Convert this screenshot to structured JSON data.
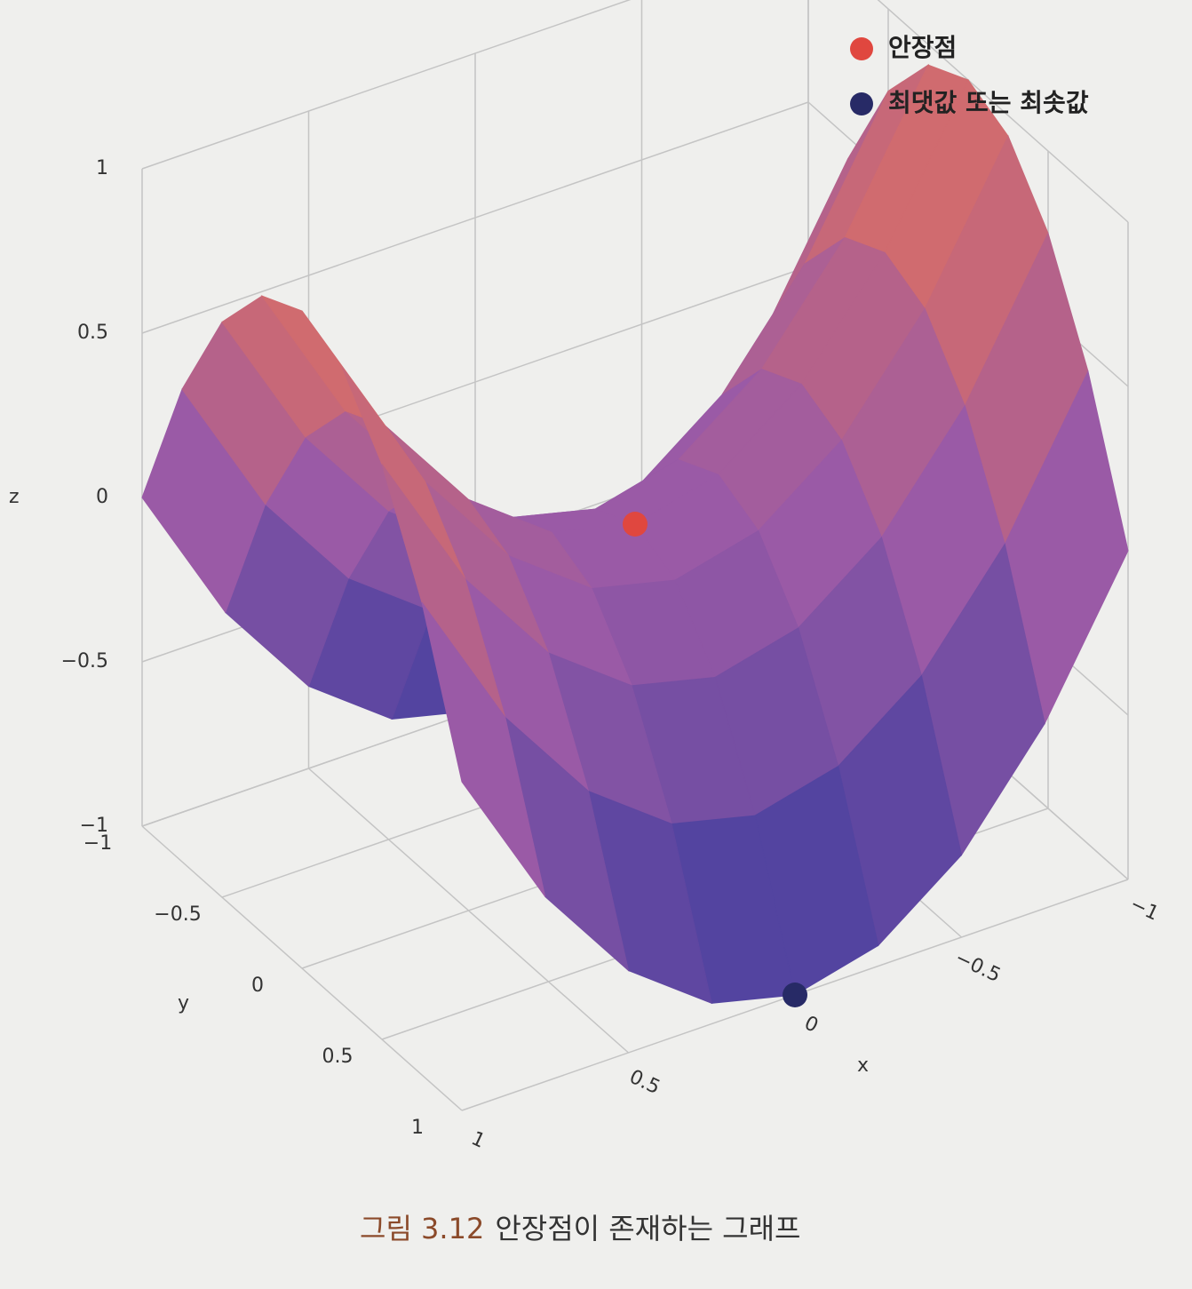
{
  "chart_data": {
    "type": "surface",
    "xlabel": "x",
    "ylabel": "y",
    "zlabel": "z",
    "xlim": [
      -1,
      1
    ],
    "ylim": [
      -1,
      1
    ],
    "zlim": [
      -1,
      1
    ],
    "xticks": [
      {
        "value": -1,
        "label": "−1"
      },
      {
        "value": -0.5,
        "label": "−0.5"
      },
      0,
      0.5,
      1
    ],
    "yticks": [
      {
        "value": -1,
        "label": "−1"
      },
      {
        "value": -0.5,
        "label": "−0.5"
      },
      0,
      0.5,
      1
    ],
    "zticks": [
      {
        "value": -1,
        "label": "−1"
      },
      {
        "value": -0.5,
        "label": "−0.5"
      },
      0,
      0.5,
      1
    ],
    "grid": true,
    "colorscale": [
      "#3b3c9e",
      "#9a5aa6",
      "#e2705c"
    ],
    "surface": {
      "x": [
        -1,
        -0.75,
        -0.5,
        -0.25,
        0,
        0.25,
        0.5,
        0.75,
        1
      ],
      "y": [
        -1,
        -0.75,
        -0.5,
        -0.25,
        0,
        0.25,
        0.5,
        0.75,
        1
      ],
      "z": [
        [
          0,
          -0.4375,
          -0.75,
          -0.9375,
          -1,
          -0.9375,
          -0.75,
          -0.4375,
          0
        ],
        [
          0.4375,
          0,
          -0.3125,
          -0.5,
          -0.5625,
          -0.5,
          -0.3125,
          0,
          0.4375
        ],
        [
          0.75,
          0.3125,
          0,
          -0.1875,
          -0.25,
          -0.1875,
          0,
          0.3125,
          0.75
        ],
        [
          0.9375,
          0.5,
          0.1875,
          0,
          -0.0625,
          0,
          0.1875,
          0.5,
          0.9375
        ],
        [
          1,
          0.5625,
          0.25,
          0.0625,
          0,
          0.0625,
          0.25,
          0.5625,
          1
        ],
        [
          0.9375,
          0.5,
          0.1875,
          0,
          -0.0625,
          0,
          0.1875,
          0.5,
          0.9375
        ],
        [
          0.75,
          0.3125,
          0,
          -0.1875,
          -0.25,
          -0.1875,
          0,
          0.3125,
          0.75
        ],
        [
          0.4375,
          0,
          -0.3125,
          -0.5,
          -0.5625,
          -0.5,
          -0.3125,
          0,
          0.4375
        ],
        [
          0,
          -0.4375,
          -0.75,
          -0.9375,
          -1,
          -0.9375,
          -0.75,
          -0.4375,
          0
        ]
      ]
    },
    "series": [
      {
        "name": "안장점",
        "color": "#e0473f",
        "x": [
          0
        ],
        "y": [
          0
        ],
        "z": [
          0
        ]
      },
      {
        "name": "최댓값 또는 최솟값",
        "color": "#272a66",
        "x": [
          0
        ],
        "y": [
          1
        ],
        "z": [
          -1
        ]
      }
    ],
    "legend": "top-right"
  },
  "caption": {
    "label": "그림 3.12",
    "text": "안장점이 존재하는 그래프"
  }
}
